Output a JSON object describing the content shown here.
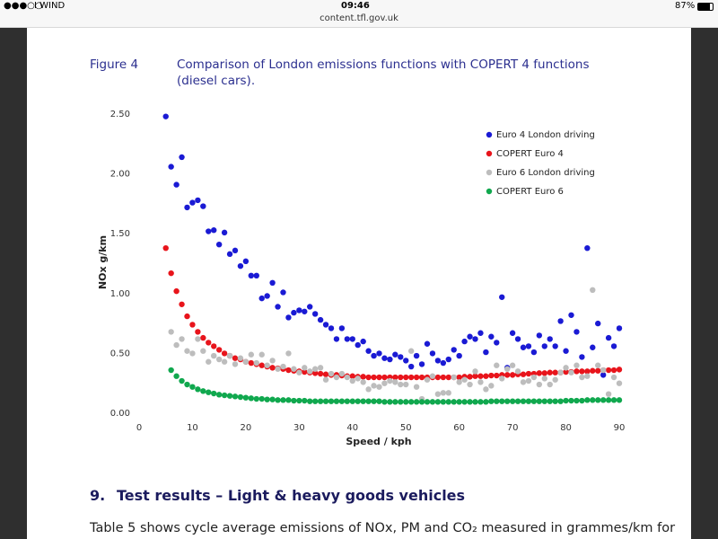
{
  "browser": {
    "carrier": "I WIND",
    "time": "09:46",
    "battery": "87%",
    "url": "content.tfl.gov.uk"
  },
  "chart_data": {
    "type": "scatter",
    "figure_label": "Figure 4",
    "title": "Comparison of London emissions functions with COPERT 4 functions (diesel cars).",
    "xlabel": "Speed / kph",
    "ylabel": "NOx g/km",
    "xlim": [
      0,
      90
    ],
    "xticks": [
      0,
      10,
      20,
      30,
      40,
      50,
      60,
      70,
      80,
      90
    ],
    "ylim": [
      0,
      2.5
    ],
    "yticks": [
      {
        "value": 0,
        "label": "0.00"
      },
      {
        "value": 0.5,
        "label": "0.50"
      },
      {
        "value": 1,
        "label": "1.00"
      },
      {
        "value": 1.5,
        "label": "1.50"
      },
      {
        "value": 2,
        "label": "2.00"
      },
      {
        "value": 2.5,
        "label": "2.50"
      }
    ],
    "grid": false,
    "legend": "upper right",
    "x": [
      5,
      6,
      7,
      8,
      9,
      10,
      11,
      12,
      13,
      14,
      15,
      16,
      17,
      18,
      19,
      20,
      21,
      22,
      23,
      24,
      25,
      26,
      27,
      28,
      29,
      30,
      31,
      32,
      33,
      34,
      35,
      36,
      37,
      38,
      39,
      40,
      41,
      42,
      43,
      44,
      45,
      46,
      47,
      48,
      49,
      50,
      51,
      52,
      53,
      54,
      55,
      56,
      57,
      58,
      59,
      60,
      61,
      62,
      63,
      64,
      65,
      66,
      67,
      68,
      69,
      70,
      71,
      72,
      73,
      74,
      75,
      76,
      77,
      78,
      79,
      80,
      81,
      82,
      83,
      84,
      85,
      86,
      87,
      88,
      89,
      90
    ],
    "series": [
      {
        "name": "Euro 4 London driving",
        "color": "#1a1ad4",
        "values": [
          2.48,
          2.06,
          1.91,
          2.14,
          1.72,
          1.76,
          1.78,
          1.73,
          1.52,
          1.53,
          1.41,
          1.51,
          1.33,
          1.36,
          1.23,
          1.27,
          1.15,
          1.15,
          0.96,
          0.98,
          1.09,
          0.89,
          1.01,
          0.8,
          0.84,
          0.86,
          0.85,
          0.89,
          0.83,
          0.78,
          0.74,
          0.71,
          0.62,
          0.71,
          0.62,
          0.62,
          0.57,
          0.6,
          0.52,
          0.48,
          0.5,
          0.46,
          0.45,
          0.49,
          0.47,
          0.44,
          0.39,
          0.48,
          0.41,
          0.58,
          0.5,
          0.44,
          0.42,
          0.45,
          0.53,
          0.48,
          0.6,
          0.64,
          0.62,
          0.67,
          0.51,
          0.64,
          0.59,
          0.97,
          0.38,
          0.67,
          0.62,
          0.55,
          0.56,
          0.51,
          0.65,
          0.56,
          0.62,
          0.56,
          0.77,
          0.52,
          0.82,
          0.68,
          0.47,
          1.38,
          0.55,
          0.75,
          0.32,
          0.63,
          0.56,
          0.71
        ]
      },
      {
        "name": "COPERT Euro 4",
        "color": "#e8141b",
        "values": [
          1.38,
          1.17,
          1.02,
          0.91,
          0.81,
          0.74,
          0.68,
          0.63,
          0.59,
          0.56,
          0.53,
          0.5,
          0.48,
          0.46,
          0.45,
          0.43,
          0.42,
          0.41,
          0.4,
          0.39,
          0.38,
          0.375,
          0.37,
          0.36,
          0.355,
          0.35,
          0.345,
          0.34,
          0.335,
          0.33,
          0.325,
          0.32,
          0.32,
          0.315,
          0.31,
          0.31,
          0.305,
          0.305,
          0.3,
          0.3,
          0.3,
          0.3,
          0.3,
          0.3,
          0.3,
          0.3,
          0.3,
          0.3,
          0.3,
          0.3,
          0.3,
          0.3,
          0.3,
          0.3,
          0.3,
          0.3,
          0.305,
          0.305,
          0.31,
          0.31,
          0.31,
          0.315,
          0.315,
          0.32,
          0.32,
          0.32,
          0.325,
          0.325,
          0.33,
          0.33,
          0.335,
          0.335,
          0.34,
          0.34,
          0.34,
          0.345,
          0.345,
          0.35,
          0.35,
          0.35,
          0.355,
          0.355,
          0.36,
          0.36,
          0.36,
          0.365
        ]
      },
      {
        "name": "Euro 6 London driving",
        "color": "#bdbdbd",
        "values": [
          null,
          0.68,
          0.57,
          0.62,
          0.52,
          0.5,
          0.62,
          0.52,
          0.43,
          0.48,
          0.45,
          0.43,
          0.48,
          0.41,
          0.46,
          0.43,
          0.49,
          0.42,
          0.49,
          0.4,
          0.44,
          0.37,
          0.39,
          0.5,
          0.37,
          0.34,
          0.38,
          0.35,
          0.37,
          0.38,
          0.28,
          0.33,
          0.3,
          0.33,
          0.3,
          0.27,
          0.29,
          0.26,
          0.2,
          0.23,
          0.22,
          0.25,
          0.27,
          0.26,
          0.24,
          0.24,
          0.52,
          0.22,
          0.12,
          0.28,
          0.31,
          0.16,
          0.17,
          0.17,
          0.3,
          0.26,
          0.28,
          0.24,
          0.35,
          0.26,
          0.2,
          0.23,
          0.4,
          0.29,
          0.37,
          0.4,
          0.35,
          0.26,
          0.27,
          0.3,
          0.24,
          0.29,
          0.24,
          0.28,
          0.34,
          0.38,
          0.34,
          0.4,
          0.3,
          0.31,
          1.03,
          0.4,
          0.36,
          0.16,
          0.3,
          0.25
        ]
      },
      {
        "name": "COPERT Euro 6",
        "color": "#10a84e",
        "values": [
          null,
          0.36,
          0.31,
          0.27,
          0.24,
          0.22,
          0.2,
          0.185,
          0.175,
          0.165,
          0.155,
          0.15,
          0.145,
          0.14,
          0.135,
          0.13,
          0.125,
          0.12,
          0.12,
          0.115,
          0.115,
          0.11,
          0.11,
          0.11,
          0.105,
          0.105,
          0.105,
          0.1,
          0.1,
          0.1,
          0.1,
          0.1,
          0.1,
          0.1,
          0.1,
          0.1,
          0.1,
          0.1,
          0.1,
          0.1,
          0.1,
          0.095,
          0.095,
          0.095,
          0.095,
          0.095,
          0.095,
          0.095,
          0.095,
          0.095,
          0.095,
          0.095,
          0.095,
          0.095,
          0.095,
          0.095,
          0.095,
          0.095,
          0.095,
          0.095,
          0.095,
          0.1,
          0.1,
          0.1,
          0.1,
          0.1,
          0.1,
          0.1,
          0.1,
          0.1,
          0.1,
          0.1,
          0.1,
          0.1,
          0.1,
          0.105,
          0.105,
          0.105,
          0.105,
          0.11,
          0.11,
          0.11,
          0.11,
          0.11,
          0.11,
          0.11
        ]
      }
    ]
  },
  "section": {
    "number": "9.",
    "title": "Test results – Light & heavy goods vehicles",
    "body": "Table 5 shows cycle average emissions of NOx, PM and CO₂ measured in grammes/km for"
  }
}
